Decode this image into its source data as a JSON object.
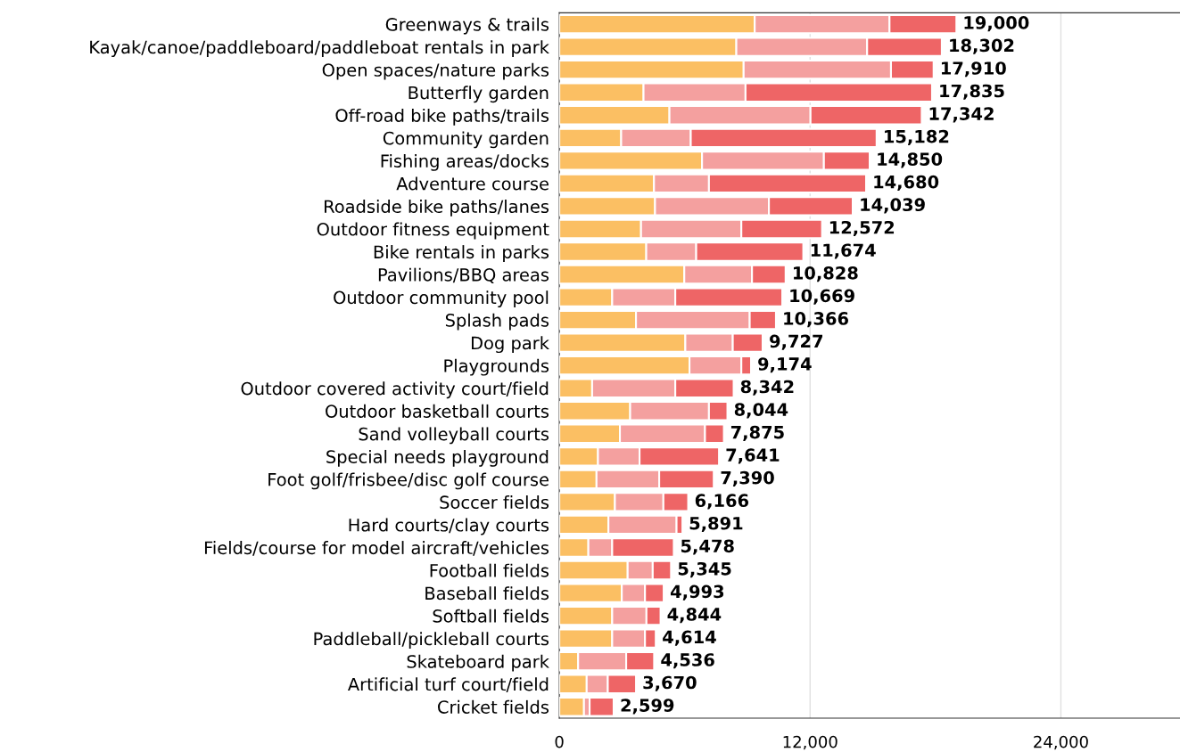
{
  "chart_data": {
    "type": "bar",
    "orientation": "horizontal",
    "stacked": true,
    "categories": [
      "Greenways & trails",
      "Kayak/canoe/paddleboard/paddleboat rentals in park",
      "Open spaces/nature parks",
      "Butterfly garden",
      "Off-road bike paths/trails",
      "Community garden",
      "Fishing areas/docks",
      "Adventure course",
      "Roadside bike paths/lanes",
      "Outdoor fitness equipment",
      "Bike rentals in parks",
      "Pavilions/BBQ areas",
      "Outdoor community pool",
      "Splash pads",
      "Dog park",
      "Playgrounds",
      "Outdoor covered activity court/field",
      "Outdoor basketball courts",
      "Sand volleyball courts",
      "Special needs playground",
      "Foot golf/frisbee/disc golf course",
      "Soccer fields",
      "Hard courts/clay courts",
      "Fields/course for model aircraft/vehicles",
      "Football fields",
      "Baseball fields",
      "Softball fields",
      "Paddleball/pickleball courts",
      "Skateboard park",
      "Artificial turf court/field",
      "Cricket fields"
    ],
    "series": [
      {
        "color": "#fbbf63",
        "values": [
          9350,
          8470,
          8820,
          4030,
          5270,
          2960,
          6830,
          4530,
          4580,
          3910,
          4160,
          5980,
          2530,
          3670,
          6030,
          6230,
          1570,
          3390,
          2900,
          1850,
          1780,
          2660,
          2350,
          1390,
          3270,
          2990,
          2530,
          2530,
          900,
          1310,
          1180
        ]
      },
      {
        "color": "#f4a09f",
        "values": [
          6450,
          6260,
          7050,
          4880,
          6750,
          3330,
          5830,
          2630,
          5450,
          4800,
          2390,
          3240,
          3020,
          5440,
          2270,
          2480,
          3980,
          3770,
          4070,
          1990,
          3000,
          2320,
          3260,
          1140,
          1200,
          1110,
          1640,
          1570,
          2300,
          1010,
          270
        ]
      },
      {
        "color": "#ee6566",
        "values": [
          3200,
          3572,
          2040,
          8925,
          5322,
          8892,
          2190,
          7520,
          4009,
          3862,
          5124,
          1608,
          5119,
          1256,
          1427,
          464,
          2792,
          884,
          905,
          3801,
          2610,
          1186,
          281,
          2948,
          875,
          893,
          674,
          514,
          1336,
          1350,
          1149
        ]
      }
    ],
    "totals": [
      "19,000",
      "18,302",
      "17,910",
      "17,835",
      "17,342",
      "15,182",
      "14,850",
      "14,680",
      "14,039",
      "12,572",
      "11,674",
      "10,828",
      "10,669",
      "10,366",
      "9,727",
      "9,174",
      "8,342",
      "8,044",
      "7,875",
      "7,641",
      "7,390",
      "6,166",
      "5,891",
      "5,478",
      "5,345",
      "4,993",
      "4,844",
      "4,614",
      "4,536",
      "3,670",
      "2,599"
    ],
    "xlim": [
      0,
      29700
    ],
    "xticks": [
      {
        "value": 0,
        "label": "0"
      },
      {
        "value": 12000,
        "label": "12,000"
      },
      {
        "value": 24000,
        "label": "24,000"
      }
    ],
    "grid": "x"
  }
}
